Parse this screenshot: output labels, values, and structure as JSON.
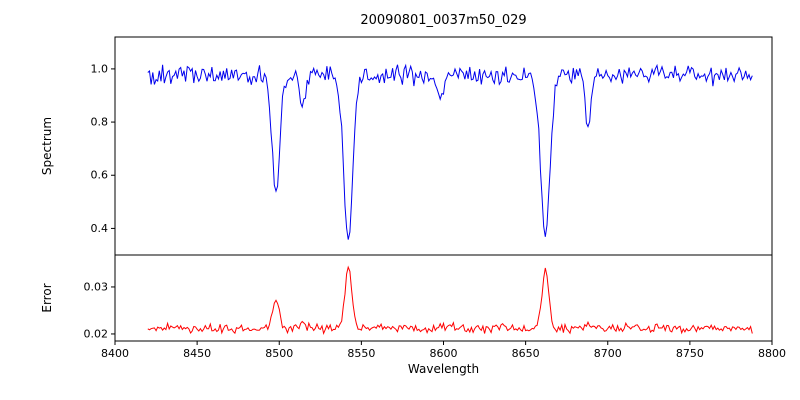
{
  "figure": {
    "title": "20090801_0037m50_029",
    "xlabel": "Wavelength",
    "background": "#ffffff"
  },
  "chart_data": [
    {
      "type": "line",
      "name": "spectrum",
      "ylabel": "Spectrum",
      "color": "#0000ee",
      "xlim": [
        8400,
        8800
      ],
      "ylim": [
        0.3,
        1.12
      ],
      "yticks": [
        0.4,
        0.6,
        0.8,
        1.0
      ],
      "ytick_labels": [
        "0.4",
        "0.6",
        "0.8",
        "1.0"
      ],
      "x_start": 8420,
      "x_end": 8788,
      "x_step": 1,
      "continuum": 0.975,
      "noise_amplitude": 0.045,
      "absorption_lines": [
        {
          "center": 8498,
          "depth": 0.45,
          "width": 2.4
        },
        {
          "center": 8514,
          "depth": 0.12,
          "width": 1.8
        },
        {
          "center": 8542,
          "depth": 0.61,
          "width": 2.8
        },
        {
          "center": 8598,
          "depth": 0.09,
          "width": 1.8
        },
        {
          "center": 8662,
          "depth": 0.6,
          "width": 2.8
        },
        {
          "center": 8688,
          "depth": 0.17,
          "width": 2.0
        }
      ]
    },
    {
      "type": "line",
      "name": "error",
      "ylabel": "Error",
      "color": "#ff0000",
      "xlim": [
        8400,
        8800
      ],
      "ylim": [
        0.0185,
        0.0368
      ],
      "yticks": [
        0.02,
        0.03
      ],
      "ytick_labels": [
        "0.02",
        "0.03"
      ],
      "xticks": [
        8400,
        8450,
        8500,
        8550,
        8600,
        8650,
        8700,
        8750,
        8800
      ],
      "xtick_labels": [
        "8400",
        "8450",
        "8500",
        "8550",
        "8600",
        "8650",
        "8700",
        "8750",
        "8800"
      ],
      "x_start": 8420,
      "x_end": 8788,
      "x_step": 1,
      "baseline": 0.0212,
      "noise_amplitude": 0.0012,
      "peaks": [
        {
          "center": 8498,
          "height": 0.0063,
          "width": 1.8
        },
        {
          "center": 8514,
          "height": 0.0008,
          "width": 1.5
        },
        {
          "center": 8542,
          "height": 0.0136,
          "width": 2.0
        },
        {
          "center": 8598,
          "height": 0.0005,
          "width": 1.5
        },
        {
          "center": 8662,
          "height": 0.0128,
          "width": 2.0
        },
        {
          "center": 8688,
          "height": 0.0014,
          "width": 1.8
        }
      ]
    }
  ]
}
